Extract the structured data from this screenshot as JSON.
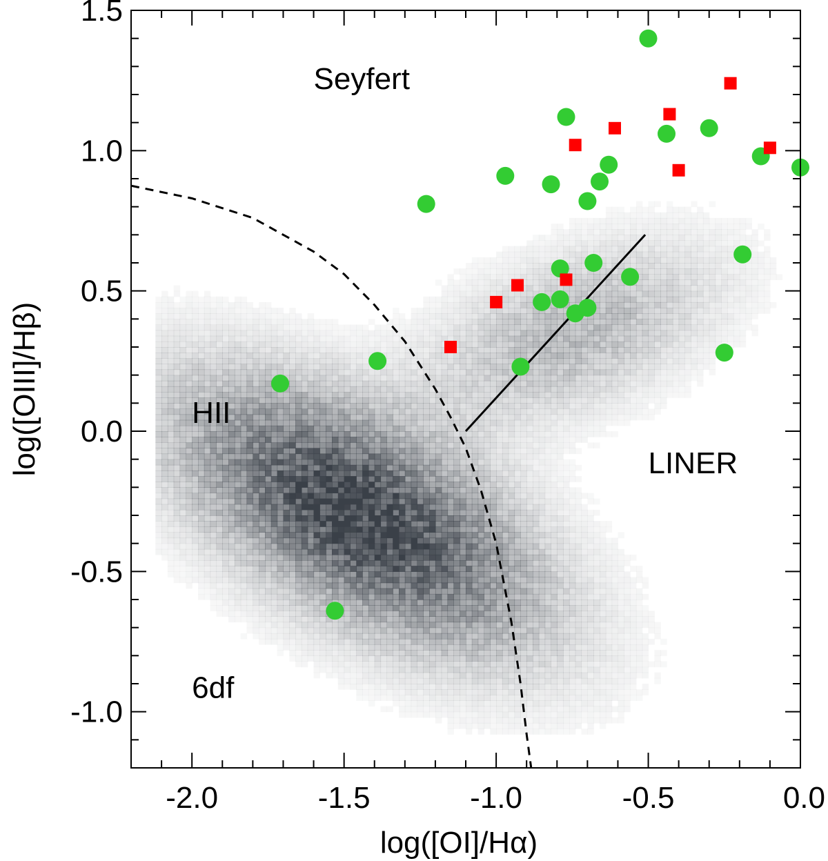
{
  "chart_data": {
    "type": "scatter",
    "xlabel": "log([OI]/Hα)",
    "ylabel": "log([OIII]/Hβ)",
    "xlim": [
      -2.2,
      0.0
    ],
    "ylim": [
      -1.2,
      1.5
    ],
    "x_ticks": [
      "-2.0",
      "-1.5",
      "-1.0",
      "-0.5",
      "0.0"
    ],
    "y_ticks": [
      "-1.0",
      "-0.5",
      "0.0",
      "0.5",
      "1.0",
      "1.5"
    ],
    "x_tick_values": [
      -2.0,
      -1.5,
      -1.0,
      -0.5,
      0.0
    ],
    "y_tick_values": [
      -1.0,
      -0.5,
      0.0,
      0.5,
      1.0,
      1.5
    ],
    "grid": false,
    "colors": {
      "circles": "#33cc33",
      "squares": "#ff0000",
      "background_cloud": "#3a4048"
    },
    "region_labels": [
      {
        "text": "Seyfert",
        "x": -1.6,
        "y": 1.22
      },
      {
        "text": "HII",
        "x": -2.0,
        "y": 0.03
      },
      {
        "text": "LINER",
        "x": -0.5,
        "y": -0.15
      },
      {
        "text": "6df",
        "x": -2.0,
        "y": -0.95
      }
    ],
    "background_density": {
      "name": "6df",
      "description_shown": "grey density cloud of 6dF galaxies",
      "components": [
        {
          "cx": -1.45,
          "cy": -0.3,
          "sx": 0.22,
          "sy": 0.45,
          "rot": 55,
          "weight": 1.0
        },
        {
          "cx": -0.75,
          "cy": 0.35,
          "sx": 0.35,
          "sy": 0.18,
          "rot": 25,
          "weight": 0.35
        }
      ]
    },
    "curves": [
      {
        "style": "dashed",
        "description": "maximum starburst line",
        "x": [
          -2.2,
          -2.0,
          -1.8,
          -1.6,
          -1.5,
          -1.4,
          -1.3,
          -1.2,
          -1.15,
          -1.1,
          -1.05,
          -1.0,
          -0.95,
          -0.92,
          -0.9,
          -0.885
        ],
        "y": [
          0.875,
          0.83,
          0.76,
          0.64,
          0.56,
          0.45,
          0.32,
          0.15,
          0.05,
          -0.06,
          -0.21,
          -0.4,
          -0.68,
          -0.9,
          -1.08,
          -1.2
        ]
      },
      {
        "style": "solid",
        "description": "Seyfert/LINER division",
        "x": [
          -1.1,
          -0.51
        ],
        "y": [
          0.0,
          0.7
        ]
      }
    ],
    "series": [
      {
        "marker": "circle",
        "x": [
          -0.5,
          -0.77,
          -0.44,
          -0.3,
          -0.13,
          0.0,
          -0.97,
          -0.82,
          -0.63,
          -0.66,
          -0.7,
          -1.23,
          -0.19,
          -0.79,
          -0.68,
          -0.56,
          -0.85,
          -0.79,
          -0.74,
          -0.7,
          -0.25,
          -1.39,
          -0.92,
          -1.71,
          -1.53
        ],
        "y": [
          1.4,
          1.12,
          1.06,
          1.08,
          0.98,
          0.94,
          0.91,
          0.88,
          0.95,
          0.89,
          0.82,
          0.81,
          0.63,
          0.58,
          0.6,
          0.55,
          0.46,
          0.47,
          0.42,
          0.44,
          0.28,
          0.25,
          0.23,
          0.17,
          -0.64
        ]
      },
      {
        "marker": "square",
        "x": [
          -0.23,
          -0.43,
          -0.61,
          -0.74,
          -0.4,
          -0.1,
          -0.93,
          -0.77,
          -1.0,
          -1.15
        ],
        "y": [
          1.24,
          1.13,
          1.08,
          1.02,
          0.93,
          1.01,
          0.52,
          0.54,
          0.46,
          0.3
        ]
      }
    ]
  }
}
